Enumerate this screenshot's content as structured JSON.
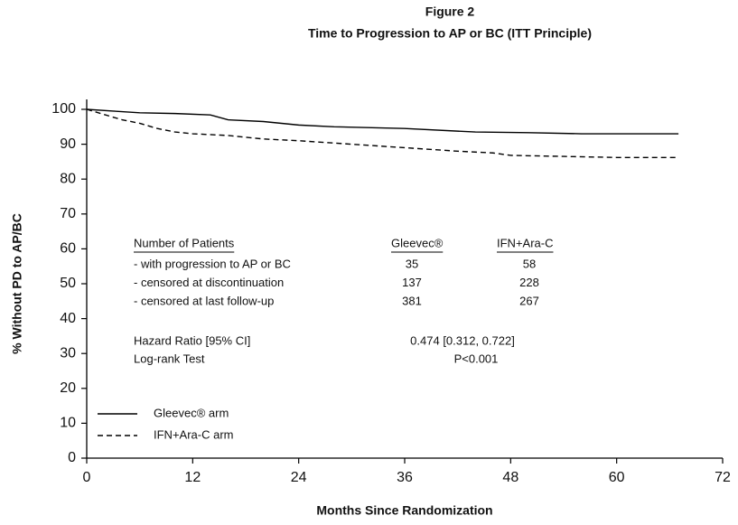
{
  "chart_data": {
    "type": "line",
    "title": "Figure 2",
    "subtitle": "Time to Progression to AP or BC (ITT Principle)",
    "xlabel": "Months Since Randomization",
    "ylabel": "% Without PD to AP/BC",
    "xlim": [
      0,
      72
    ],
    "xticks": [
      0,
      12,
      24,
      36,
      48,
      60,
      72
    ],
    "ylim": [
      0,
      100
    ],
    "yticks": [
      0,
      10,
      20,
      30,
      40,
      50,
      60,
      70,
      80,
      90,
      100
    ],
    "grid": false,
    "legend": "lower left",
    "series": [
      {
        "name": "Gleevec® arm",
        "color": "#000000",
        "dash": "solid",
        "x": [
          0,
          3,
          6,
          10,
          14,
          16,
          20,
          24,
          28,
          36,
          44,
          50,
          56,
          67
        ],
        "values": [
          100,
          99.5,
          99,
          98.8,
          98.4,
          97,
          96.5,
          95.5,
          95,
          94.5,
          93.5,
          93.3,
          93,
          93
        ]
      },
      {
        "name": "IFN+Ara-C arm",
        "color": "#000000",
        "dash": "dashed",
        "x": [
          0,
          2,
          4,
          6,
          8,
          10,
          12,
          16,
          20,
          24,
          30,
          36,
          42,
          46,
          48,
          54,
          60,
          67
        ],
        "values": [
          100,
          98.5,
          97,
          96,
          94.5,
          93.5,
          93,
          92.5,
          91.5,
          91,
          90,
          89,
          88,
          87.5,
          86.8,
          86.5,
          86.2,
          86.2
        ]
      }
    ],
    "annotations": {
      "columns": [
        "Number of Patients",
        "Gleevec®",
        "IFN+Ara-C"
      ],
      "rows": [
        [
          "- with progression to AP or BC",
          35,
          58
        ],
        [
          "- censored at discontinuation",
          137,
          228
        ],
        [
          "- censored at last follow-up",
          381,
          267
        ]
      ],
      "hazard_ratio": {
        "label": "Hazard Ratio [95% CI]",
        "value": "0.474 [0.312, 0.722]"
      },
      "log_rank": {
        "label": "Log-rank Test",
        "value": "P<0.001"
      }
    }
  }
}
